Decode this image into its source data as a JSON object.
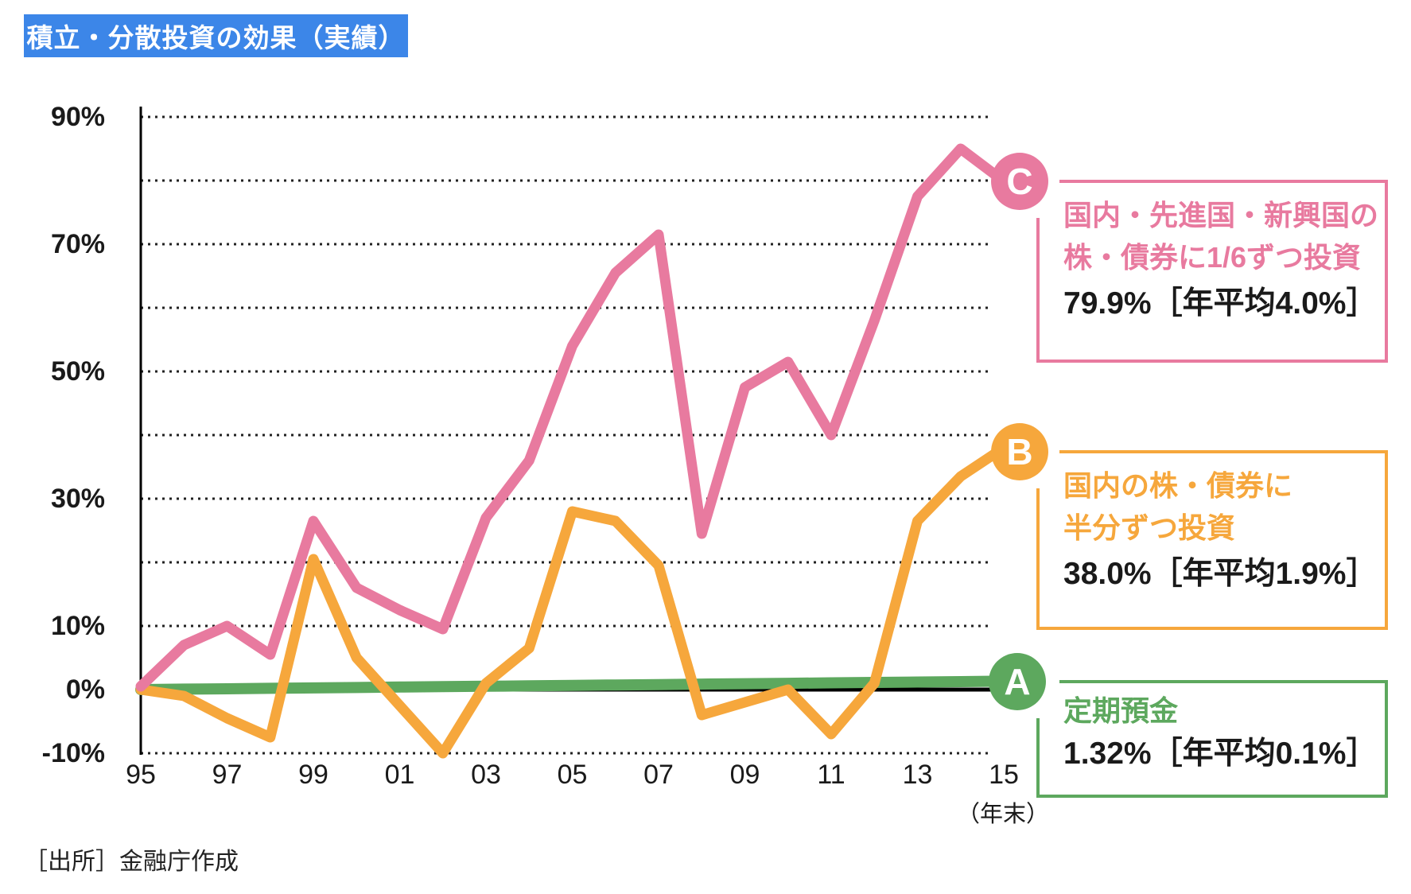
{
  "title": "積立・分散投資の効果（実績）",
  "source_note": "［出所］金融庁作成",
  "x_axis_unit": "（年末）",
  "colors": {
    "title_bg": "#3C86E8",
    "title_text": "#FFFFFF",
    "series_a_green": "#5DA85E",
    "series_b_orange": "#F6A73C",
    "series_c_pink": "#E87A9F",
    "zero_line": "#000000",
    "grid_dots": "#222222",
    "text": "#1A1A1A"
  },
  "chart_data": {
    "type": "line",
    "x_years": [
      1995,
      1996,
      1997,
      1998,
      1999,
      2000,
      2001,
      2002,
      2003,
      2004,
      2005,
      2006,
      2007,
      2008,
      2009,
      2010,
      2011,
      2012,
      2013,
      2014,
      2015
    ],
    "xtick_labels": [
      "95",
      "97",
      "99",
      "01",
      "03",
      "05",
      "07",
      "09",
      "11",
      "13",
      "15"
    ],
    "yticks": [
      90,
      70,
      50,
      30,
      10,
      0,
      -10
    ],
    "ytick_labels": [
      "90%",
      "70%",
      "50%",
      "30%",
      "10%",
      "0%",
      "-10%"
    ],
    "ylim": [
      -10,
      90
    ],
    "grid_interval": 10,
    "grid_style": "dotted",
    "legend_position": "right",
    "series": [
      {
        "key": "A",
        "label": "定期預金",
        "final_return": "1.32%",
        "annual_avg": "0.1%",
        "values": [
          0,
          0.07,
          0.13,
          0.2,
          0.26,
          0.33,
          0.4,
          0.46,
          0.53,
          0.59,
          0.66,
          0.73,
          0.79,
          0.86,
          0.92,
          0.99,
          1.06,
          1.12,
          1.19,
          1.25,
          1.32
        ]
      },
      {
        "key": "B",
        "label": "国内の株・債券に半分ずつ投資",
        "final_return": "38.0%",
        "annual_avg": "1.9%",
        "values": [
          0,
          -1,
          -4.5,
          -7.5,
          20.5,
          5,
          -2.5,
          -10,
          1,
          6.5,
          28,
          26.5,
          19.5,
          -4,
          -2,
          0,
          -7,
          1,
          26.5,
          33.5,
          38
        ]
      },
      {
        "key": "C",
        "label": "国内・先進国・新興国の株・債券に1/6ずつ投資",
        "final_return": "79.9%",
        "annual_avg": "4.0%",
        "values": [
          0.5,
          7,
          10,
          5.5,
          26.5,
          16,
          12.5,
          9.5,
          27,
          36,
          54,
          65.5,
          71.5,
          24.5,
          47.5,
          51.5,
          40,
          58,
          77.5,
          85,
          79.9
        ]
      }
    ]
  },
  "legend": [
    {
      "badge": "C",
      "lines": [
        "国内・先進国・新興国の",
        "株・債券に1/6ずつ投資"
      ],
      "result": "79.9%［年平均4.0%］"
    },
    {
      "badge": "B",
      "lines": [
        "国内の株・債券に",
        "半分ずつ投資"
      ],
      "result": "38.0%［年平均1.9%］"
    },
    {
      "badge": "A",
      "lines": [
        "定期預金"
      ],
      "result": "1.32%［年平均0.1%］"
    }
  ]
}
